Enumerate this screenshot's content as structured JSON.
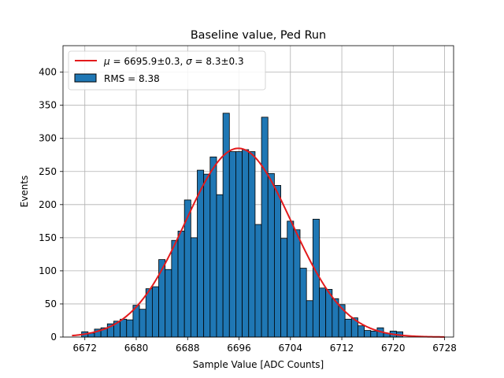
{
  "chart_data": {
    "type": "bar",
    "title": "Baseline value, Ped Run",
    "xlabel": "Sample Value [ADC Counts]",
    "ylabel": "Events",
    "xlim": [
      6668.6,
      6729.4
    ],
    "ylim": [
      0,
      440
    ],
    "x_ticks": [
      6672,
      6680,
      6688,
      6696,
      6704,
      6712,
      6720,
      6728
    ],
    "y_ticks": [
      0,
      50,
      100,
      150,
      200,
      250,
      300,
      350,
      400
    ],
    "grid": true,
    "legend_position": "top-left",
    "bin_width": 1,
    "histogram": {
      "name": "RMS = 8.38",
      "color": "#1f77b4",
      "edge_color": "#000000",
      "bin_centers": [
        6672,
        6673,
        6674,
        6675,
        6676,
        6677,
        6678,
        6679,
        6680,
        6681,
        6682,
        6683,
        6684,
        6685,
        6686,
        6687,
        6688,
        6689,
        6690,
        6691,
        6692,
        6693,
        6694,
        6695,
        6696,
        6697,
        6698,
        6699,
        6700,
        6701,
        6702,
        6703,
        6704,
        6705,
        6706,
        6707,
        6708,
        6709,
        6710,
        6711,
        6712,
        6713,
        6714,
        6715,
        6716,
        6717,
        6718,
        6719,
        6720,
        6721
      ],
      "counts": [
        8,
        6,
        12,
        14,
        20,
        24,
        27,
        26,
        48,
        42,
        73,
        76,
        117,
        102,
        146,
        160,
        207,
        150,
        252,
        246,
        272,
        215,
        338,
        280,
        280,
        283,
        280,
        170,
        332,
        247,
        229,
        149,
        175,
        162,
        104,
        55,
        178,
        74,
        72,
        58,
        49,
        27,
        29,
        17,
        10,
        9,
        14,
        6,
        9,
        8
      ]
    },
    "fit": {
      "name": "$\\mu = $6695.9±0.3, $\\sigma = $8.3±0.3",
      "label_mu": "μ",
      "label_mu_rest": " = 6695.9±0.3, ",
      "label_sigma": "σ",
      "label_sigma_rest": " = 8.3±0.3",
      "color": "#e31a1c",
      "mu": 6695.9,
      "sigma": 8.3,
      "amplitude": 285,
      "x_range": [
        6670,
        6728
      ]
    }
  }
}
